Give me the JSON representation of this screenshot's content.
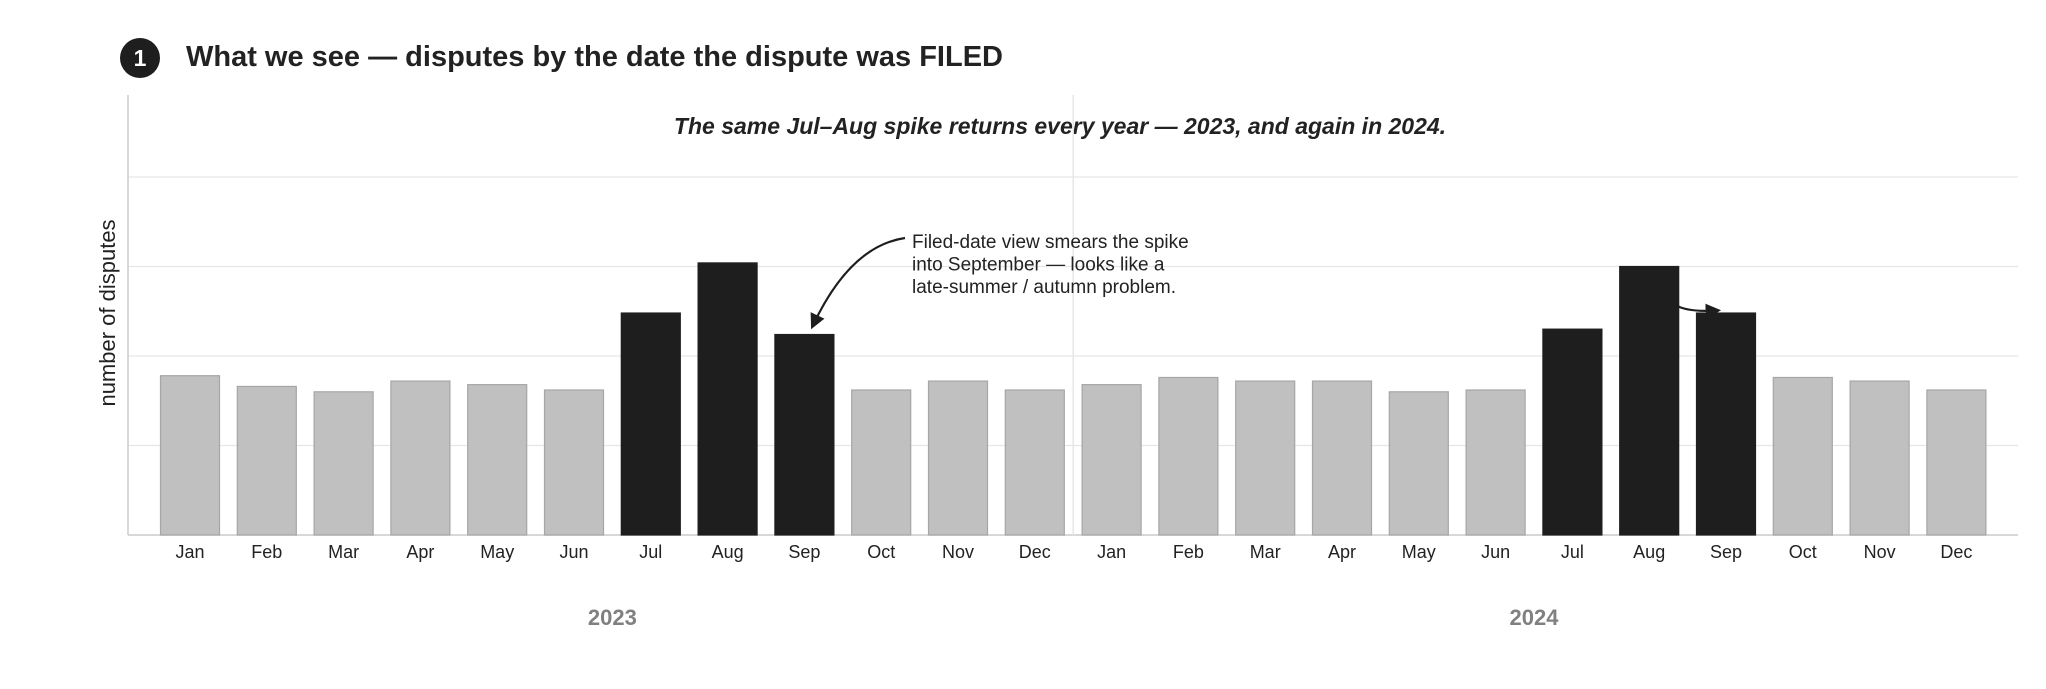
{
  "header": {
    "step_number": "1",
    "title": "What we see — disputes by the date the dispute was FILED"
  },
  "chart_data": {
    "type": "bar",
    "subtitle": "The same Jul–Aug spike returns every year — 2023, and again in 2024.",
    "ylabel": "number of disputes",
    "y_tick_labels_shown": false,
    "grid": "horizontal",
    "ylim": [
      0,
      100
    ],
    "categories": [
      "Jan",
      "Feb",
      "Mar",
      "Apr",
      "May",
      "Jun",
      "Jul",
      "Aug",
      "Sep",
      "Oct",
      "Nov",
      "Dec",
      "Jan",
      "Feb",
      "Mar",
      "Apr",
      "May",
      "Jun",
      "Jul",
      "Aug",
      "Sep",
      "Oct",
      "Nov",
      "Dec"
    ],
    "groups": [
      {
        "label": "2023",
        "start": 0,
        "count": 12
      },
      {
        "label": "2024",
        "start": 12,
        "count": 12
      }
    ],
    "values": [
      44.5,
      41.5,
      40,
      43,
      42,
      40.5,
      62,
      76,
      56,
      40.5,
      43,
      40.5,
      42,
      44,
      43,
      43,
      40,
      40.5,
      57.5,
      75,
      62,
      44,
      43,
      40.5
    ],
    "highlighted": [
      false,
      false,
      false,
      false,
      false,
      false,
      true,
      true,
      true,
      false,
      false,
      false,
      false,
      false,
      false,
      false,
      false,
      false,
      true,
      true,
      true,
      false,
      false,
      false
    ],
    "colors": {
      "normal_fill": "#c0c0c0",
      "normal_stroke": "#a6a6a6",
      "highlight_fill": "#1e1e1e",
      "grid": "#e6e6e6",
      "axis": "#cccccc",
      "text": "#222222",
      "group_label": "#808080"
    },
    "annotation": {
      "lines": [
        "Filed-date view smears the spike",
        "into September — looks like a",
        "late-summer / autumn problem."
      ],
      "target_index": 8
    },
    "second_arrow": {
      "from_index": 19,
      "to_index": 20
    }
  }
}
